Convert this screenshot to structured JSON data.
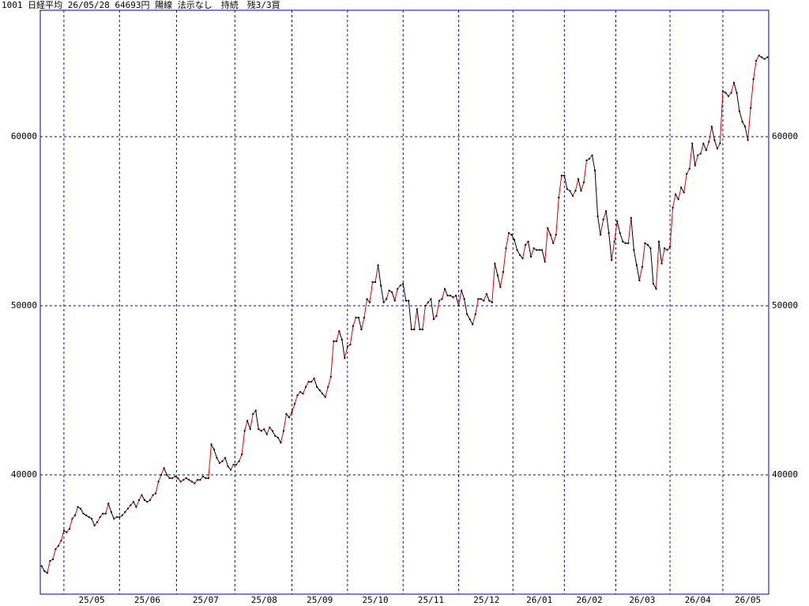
{
  "chart_data": {
    "type": "line",
    "title": "1001 日経平均 26/05/28 64693円 陽線 法示なし　持続　残3/3買",
    "categories": [
      null,
      null,
      null,
      null,
      null,
      null,
      null,
      null,
      null,
      null,
      null,
      null,
      null,
      null,
      null,
      null,
      null,
      null,
      "25/05",
      null,
      null,
      null,
      null,
      null,
      null,
      null,
      null,
      null,
      null,
      null,
      null,
      null,
      null,
      null,
      null,
      null,
      null,
      null,
      "25/06",
      null,
      null,
      null,
      null,
      null,
      null,
      null,
      null,
      null,
      null,
      null,
      null,
      null,
      null,
      null,
      null,
      null,
      null,
      null,
      null,
      "25/07",
      null,
      null,
      null,
      null,
      null,
      null,
      null,
      null,
      null,
      null,
      null,
      null,
      null,
      null,
      null,
      null,
      null,
      null,
      null,
      null,
      "25/08",
      null,
      null,
      null,
      null,
      null,
      null,
      null,
      null,
      null,
      null,
      null,
      null,
      null,
      null,
      null,
      null,
      null,
      null,
      null,
      "25/09",
      null,
      null,
      null,
      null,
      null,
      null,
      null,
      null,
      null,
      null,
      null,
      null,
      null,
      null,
      null,
      null,
      null,
      null,
      null,
      "25/10",
      null,
      null,
      null,
      null,
      null,
      null,
      null,
      null,
      null,
      null,
      null,
      null,
      null,
      null,
      null,
      null,
      null,
      null,
      null,
      "25/11",
      null,
      null,
      null,
      null,
      null,
      null,
      null,
      null,
      null,
      null,
      null,
      null,
      null,
      null,
      null,
      null,
      null,
      null,
      null,
      "25/12",
      null,
      null,
      null,
      null,
      null,
      null,
      null,
      null,
      null,
      null,
      null,
      null,
      null,
      null,
      null,
      null,
      null,
      null,
      "26/01",
      null,
      null,
      null,
      null,
      null,
      null,
      null,
      null,
      null,
      null,
      null,
      null,
      null,
      null,
      null,
      null,
      null,
      "26/02",
      null,
      null,
      null,
      null,
      null,
      null,
      null,
      null,
      null,
      null,
      null,
      null,
      null,
      null,
      null,
      null,
      null,
      null,
      "26/03",
      null,
      null,
      null,
      null,
      null,
      null,
      null,
      null,
      null,
      null,
      null,
      null,
      null,
      null,
      null,
      null,
      null,
      null,
      null,
      "26/04",
      null,
      null,
      null,
      null,
      null,
      null,
      null,
      null,
      null,
      null,
      null,
      null,
      null,
      null,
      null,
      null,
      null,
      "26/05",
      null,
      null,
      null,
      null,
      null,
      null,
      null
    ],
    "series": [
      {
        "values": [
          34600,
          34300,
          34200,
          34900,
          35000,
          35600,
          35800,
          36100,
          36700,
          36600,
          36800,
          37400,
          37600,
          38100,
          38000,
          37700,
          37600,
          37500,
          37400,
          37000,
          37200,
          37500,
          37700,
          37700,
          38300,
          37800,
          37400,
          37500,
          37500,
          37600,
          37800,
          38000,
          38200,
          38400,
          38100,
          38500,
          38800,
          38500,
          38400,
          38500,
          38800,
          38900,
          39600,
          40000,
          40400,
          40000,
          39800,
          39800,
          39900,
          39800,
          39600,
          39700,
          39800,
          39700,
          39600,
          39500,
          39700,
          39700,
          39900,
          39800,
          39800,
          41800,
          41500,
          41000,
          40700,
          40800,
          41000,
          40500,
          40300,
          40600,
          40600,
          40800,
          41200,
          42600,
          43200,
          42700,
          43600,
          43800,
          42700,
          42600,
          42700,
          42400,
          42800,
          42600,
          42300,
          42200,
          41900,
          42600,
          43600,
          43400,
          43700,
          44200,
          44700,
          44900,
          44800,
          45200,
          45500,
          45500,
          45700,
          45200,
          45000,
          44800,
          44600,
          45200,
          45800,
          47900,
          47900,
          48500,
          48000,
          46900,
          47600,
          47700,
          48800,
          49300,
          49300,
          48600,
          49300,
          50400,
          50200,
          51400,
          51400,
          52400,
          51200,
          50200,
          50400,
          50900,
          50800,
          50300,
          51000,
          51200,
          51300,
          50300,
          50300,
          48600,
          48600,
          49800,
          48600,
          48600,
          50000,
          50200,
          50400,
          49200,
          49400,
          50300,
          50400,
          51000,
          50600,
          50600,
          50500,
          50600,
          50000,
          50900,
          50400,
          49500,
          49200,
          48900,
          49500,
          50400,
          50400,
          50300,
          50700,
          50300,
          50200,
          52500,
          51800,
          51100,
          52000,
          53400,
          54300,
          54200,
          53900,
          53300,
          53000,
          52800,
          53600,
          53800,
          52900,
          53400,
          53300,
          53300,
          53300,
          52600,
          54600,
          54200,
          53700,
          54200,
          56400,
          57700,
          57700,
          56900,
          56800,
          56500,
          56800,
          57500,
          56800,
          57300,
          58600,
          58700,
          58900,
          58000,
          55300,
          54200,
          55100,
          55600,
          54300,
          52700,
          53800,
          55000,
          54300,
          53800,
          53700,
          53700,
          55200,
          53300,
          52400,
          51500,
          52300,
          53700,
          53600,
          53400,
          51300,
          51000,
          53800,
          52500,
          53400,
          53300,
          53500,
          55800,
          56600,
          56300,
          57000,
          56700,
          57800,
          58100,
          59600,
          58300,
          58900,
          59000,
          59600,
          59200,
          59700,
          60600,
          59800,
          59300,
          59600,
          62700,
          62600,
          62400,
          62600,
          63200,
          62600,
          61500,
          60900,
          60600,
          59800,
          61700,
          63400,
          64500,
          64800,
          64700,
          64600,
          64700
        ]
      }
    ],
    "ylim": [
      32940,
      67480
    ],
    "yticks": [
      40000,
      50000,
      60000
    ],
    "grid": true,
    "up_color": "#e00000",
    "down_color": "#000000",
    "marker_color": "#000000",
    "grid_color": "#0000c0",
    "frame_color": "#0000a0"
  }
}
